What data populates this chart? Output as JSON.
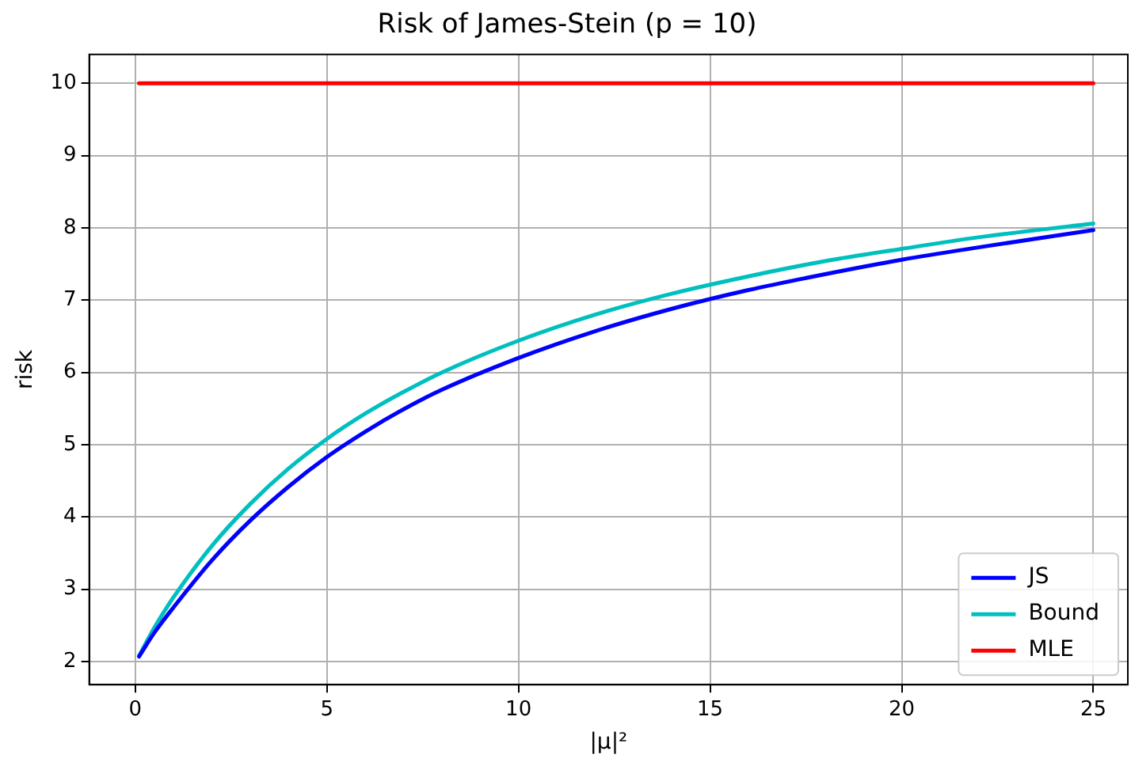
{
  "chart_data": {
    "type": "line",
    "title": "Risk of James-Stein (p = 10)",
    "xlabel": "|μ|²",
    "ylabel": "risk",
    "xlim": [
      -1.2,
      25.9
    ],
    "xticks": [
      0,
      5,
      10,
      15,
      20,
      25
    ],
    "ylim": [
      1.68,
      10.4
    ],
    "yticks": [
      2,
      3,
      4,
      5,
      6,
      7,
      8,
      9,
      10
    ],
    "grid": true,
    "legend": "bottom right",
    "marker": "none",
    "line_style": "solid",
    "x": [
      0.1,
      0.5,
      1,
      2,
      3,
      4,
      5,
      6,
      7,
      8,
      10,
      12,
      14,
      16,
      18,
      20,
      22,
      25
    ],
    "series": [
      {
        "name": "JS",
        "color": "#0000ff",
        "values": [
          2.07,
          2.4,
          2.75,
          3.4,
          3.95,
          4.42,
          4.83,
          5.18,
          5.49,
          5.76,
          6.2,
          6.57,
          6.88,
          7.14,
          7.36,
          7.56,
          7.73,
          7.97
        ]
      },
      {
        "name": "Bound",
        "color": "#00bfbf",
        "values": [
          2.08,
          2.47,
          2.89,
          3.6,
          4.18,
          4.67,
          5.08,
          5.43,
          5.73,
          6.0,
          6.44,
          6.8,
          7.09,
          7.33,
          7.54,
          7.71,
          7.87,
          8.06
        ]
      },
      {
        "name": "MLE",
        "color": "#ff0000",
        "values": [
          10,
          10,
          10,
          10,
          10,
          10,
          10,
          10,
          10,
          10,
          10,
          10,
          10,
          10,
          10,
          10,
          10,
          10
        ]
      }
    ]
  }
}
